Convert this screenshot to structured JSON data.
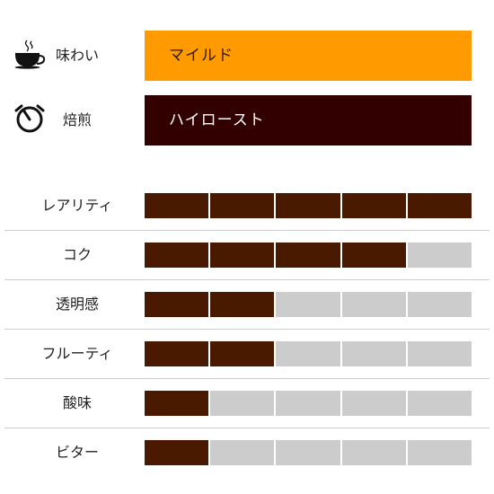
{
  "info": {
    "flavor": {
      "label": "味わい",
      "value": "マイルド",
      "icon": "coffee-cup-icon",
      "background": "#FF9A00",
      "text_color": "#2a1a00"
    },
    "roast": {
      "label": "焙煎",
      "value": "ハイロースト",
      "icon": "timer-icon",
      "background": "#330000",
      "text_color": "#ffffff"
    }
  },
  "ratings": {
    "max": 5,
    "filled_color": "#4A1A00",
    "empty_color": "#CCCCCC",
    "items": [
      {
        "label": "レアリティ",
        "value": 5
      },
      {
        "label": "コク",
        "value": 4
      },
      {
        "label": "透明感",
        "value": 2
      },
      {
        "label": "フルーティ",
        "value": 2
      },
      {
        "label": "酸味",
        "value": 1
      },
      {
        "label": "ビター",
        "value": 1
      }
    ]
  }
}
